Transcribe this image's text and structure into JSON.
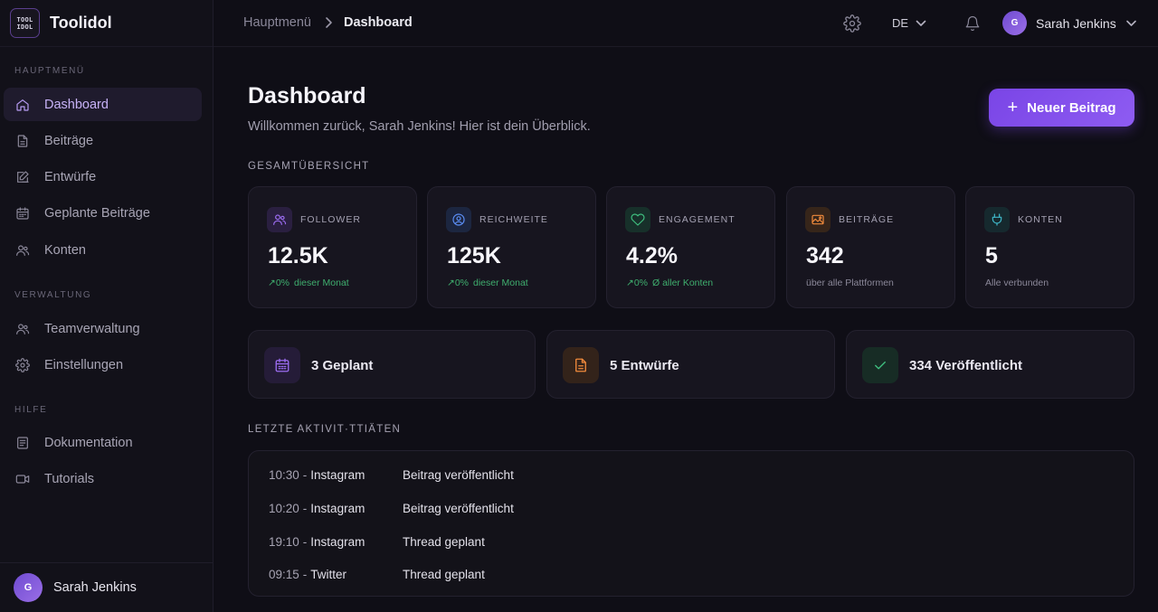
{
  "brand": {
    "logo_line1": "TOOL",
    "logo_line2": "IDOL",
    "name": "Toolidol"
  },
  "sidebar": {
    "sections": [
      {
        "label": "HAUPTMENÜ",
        "items": [
          {
            "label": "Dashboard",
            "icon": "home-icon",
            "active": true
          },
          {
            "label": "Beiträge",
            "icon": "document-icon"
          },
          {
            "label": "Entwürfe",
            "icon": "edit-icon"
          },
          {
            "label": "Geplante Beiträge",
            "icon": "calendar-icon"
          },
          {
            "label": "Konten",
            "icon": "users-icon"
          }
        ]
      },
      {
        "label": "VERWALTUNG",
        "items": [
          {
            "label": "Teamverwaltung",
            "icon": "team-icon"
          },
          {
            "label": "Einstellungen",
            "icon": "gear-icon"
          }
        ]
      },
      {
        "label": "HILFE",
        "items": [
          {
            "label": "Dokumentation",
            "icon": "book-icon"
          },
          {
            "label": "Tutorials",
            "icon": "video-icon"
          }
        ]
      }
    ],
    "footer_user": {
      "initial": "G",
      "name": "Sarah Jenkins"
    }
  },
  "topbar": {
    "breadcrumb": {
      "parent": "Hauptmenü",
      "current": "Dashboard"
    },
    "language": "DE",
    "user": {
      "initial": "G",
      "name": "Sarah Jenkins"
    }
  },
  "main": {
    "title": "Dashboard",
    "subtitle": "Willkommen zurück, Sarah Jenkins! Hier ist dein Überblick.",
    "new_post_label": "Neuer Beitrag",
    "overview_label": "GESAMTÜBERSICHT",
    "stats": [
      {
        "label": "FOLLOWER",
        "value": "12.5K",
        "trend": "0%",
        "sub": "dieser Monat",
        "icon": "followers-icon",
        "color": "#9b6cf0"
      },
      {
        "label": "REICHWEITE",
        "value": "125K",
        "trend": "0%",
        "sub": "dieser Monat",
        "icon": "reach-icon",
        "color": "#5b8ef5"
      },
      {
        "label": "ENGAGEMENT",
        "value": "4.2%",
        "trend": "0%",
        "sub": "Ø aller Konten",
        "icon": "heart-icon",
        "color": "#3fbf7f"
      },
      {
        "label": "BEITRÄGE",
        "value": "342",
        "sub": "über alle Plattformen",
        "icon": "image-icon",
        "color": "#f08a3c"
      },
      {
        "label": "KONTEN",
        "value": "5",
        "sub": "Alle verbunden",
        "icon": "plug-icon",
        "color": "#3fb8c9"
      }
    ],
    "status": [
      {
        "label": "3 Geplant",
        "icon": "calendar-icon",
        "color": "#9b6cf0"
      },
      {
        "label": "5 Entwürfe",
        "icon": "document-icon",
        "color": "#f08a3c"
      },
      {
        "label": "334 Veröffentlicht",
        "icon": "check-icon",
        "color": "#3fbf7f"
      }
    ],
    "activity_label": "LETZTE AKTIVIT·TTIÄTEN",
    "activities": [
      {
        "time": "10:30",
        "platform": "Instagram",
        "action": "Beitrag veröffentlicht"
      },
      {
        "time": "10:20",
        "platform": "Instagram",
        "action": "Beitrag veröffentlicht"
      },
      {
        "time": "19:10",
        "platform": "Instagram",
        "action": "Thread geplant"
      },
      {
        "time": "09:15",
        "platform": "Twitter",
        "action": "Thread geplant"
      }
    ]
  }
}
